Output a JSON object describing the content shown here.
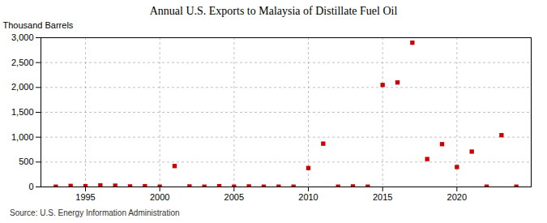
{
  "chart_data": {
    "type": "scatter",
    "title": "Annual U.S. Exports to Malaysia of Distillate Fuel Oil",
    "ylabel": "Thousand Barrels",
    "source": "Source: U.S. Energy Information Administration",
    "x": [
      1993,
      1994,
      1995,
      1996,
      1997,
      1998,
      1999,
      2000,
      2001,
      2002,
      2003,
      2004,
      2005,
      2006,
      2007,
      2008,
      2009,
      2010,
      2011,
      2012,
      2013,
      2014,
      2015,
      2016,
      2017,
      2018,
      2019,
      2020,
      2021,
      2022,
      2023,
      2024
    ],
    "values": [
      5,
      20,
      15,
      30,
      25,
      10,
      15,
      5,
      420,
      10,
      5,
      15,
      5,
      10,
      5,
      5,
      5,
      380,
      870,
      5,
      10,
      5,
      2050,
      2100,
      2900,
      560,
      860,
      400,
      710,
      5,
      1040,
      5
    ],
    "color": "#cc0000",
    "marker": "square",
    "xlim": [
      1992,
      2025
    ],
    "ylim": [
      0,
      3000
    ],
    "xticks": [
      1995,
      2000,
      2005,
      2010,
      2015,
      2020
    ],
    "yticks": [
      0,
      500,
      {
        "value": 1000,
        "label": "1,000"
      },
      {
        "value": 1500,
        "label": "1,500"
      },
      {
        "value": 2000,
        "label": "2,000"
      },
      {
        "value": 2500,
        "label": "2,500"
      },
      {
        "value": 3000,
        "label": "3,000"
      }
    ],
    "grid": true
  }
}
